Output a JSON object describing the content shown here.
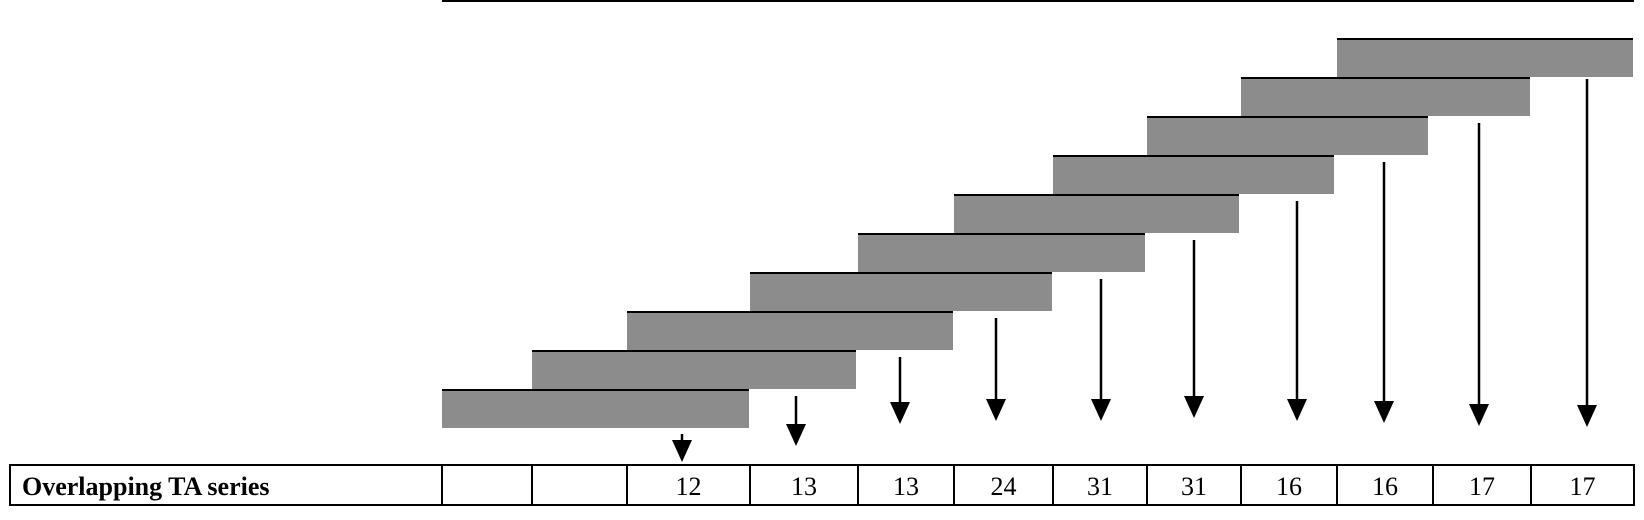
{
  "diagram": {
    "row_label": "Overlapping TA series",
    "cells": [
      "",
      "",
      "12",
      "13",
      "13",
      "24",
      "31",
      "31",
      "16",
      "16",
      "17",
      "17"
    ],
    "colors": {
      "bar_fill": "#8c8c8c",
      "line": "#000000",
      "background": "#ffffff"
    }
  }
}
